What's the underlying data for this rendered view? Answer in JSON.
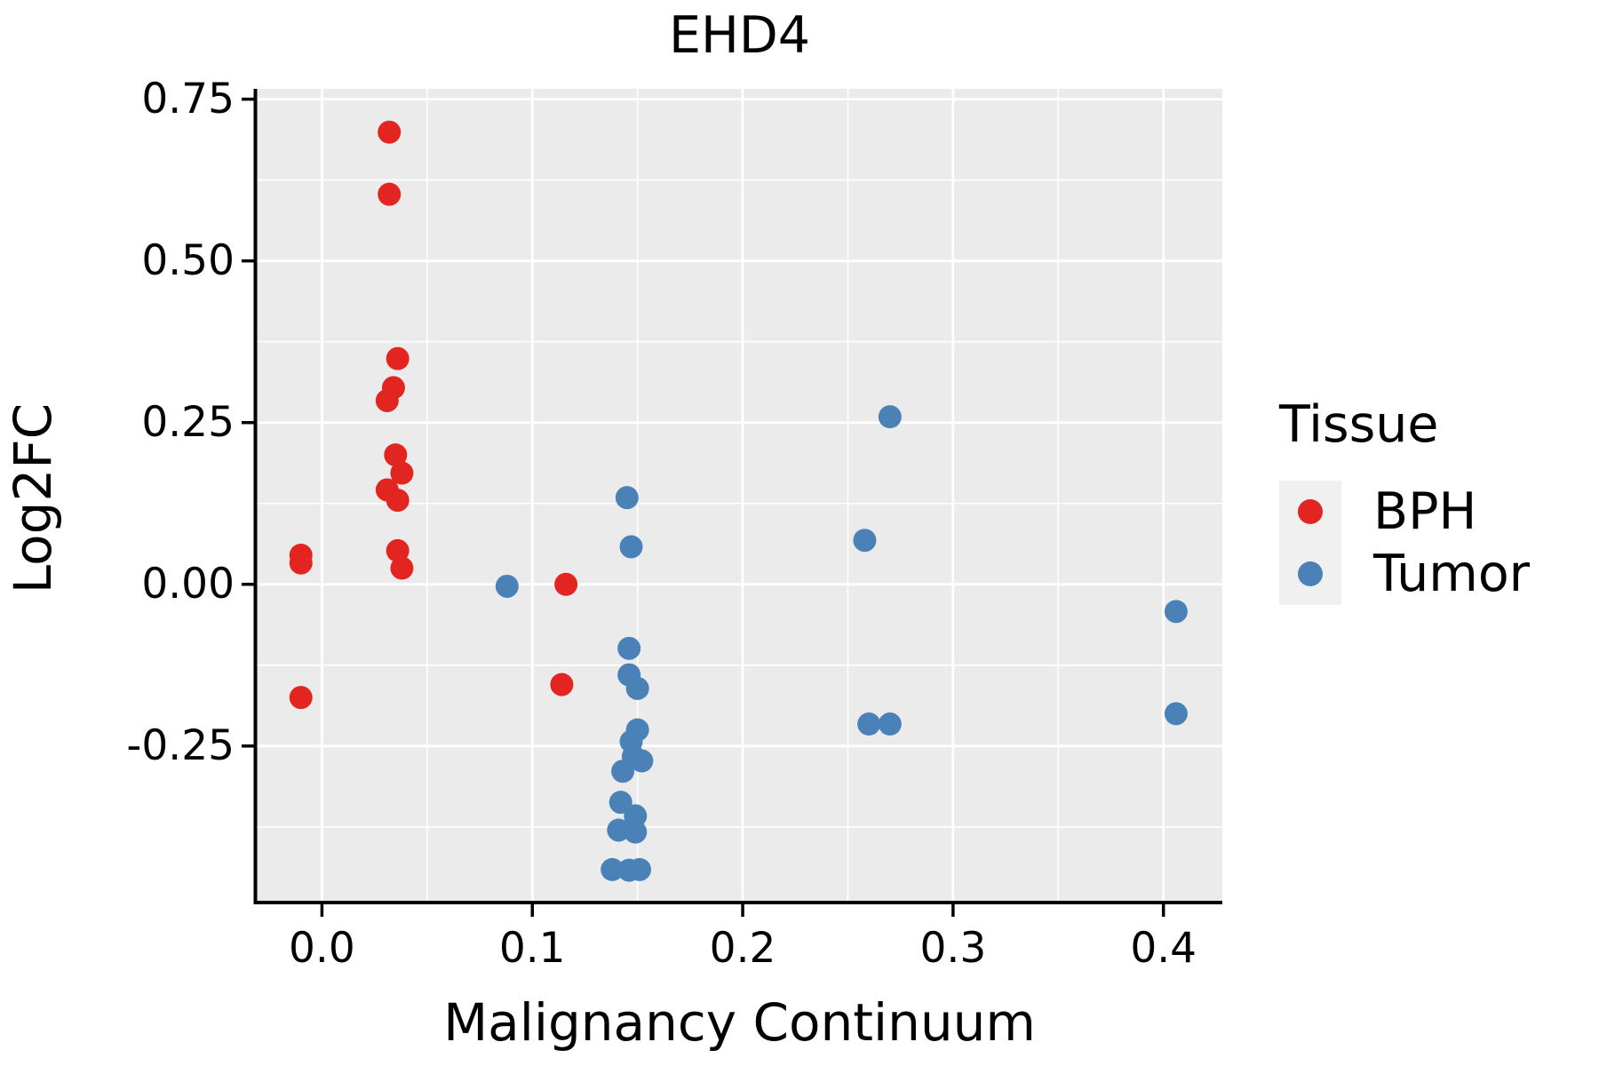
{
  "title": "EHD4",
  "legend": {
    "title": "Tissue",
    "items": [
      {
        "label": "BPH",
        "color": "#E32521"
      },
      {
        "label": "Tumor",
        "color": "#4A82B8"
      }
    ]
  },
  "colors": {
    "panel_background": "#EBEBEB",
    "gridline": "#FFFFFF",
    "axis": "#000000",
    "text": "#000000",
    "legend_key_background": "#F0F0F0"
  },
  "chart_data": {
    "type": "scatter",
    "title": "EHD4",
    "xlabel": "Malignancy Continuum",
    "ylabel": "Log2FC",
    "xlim": [
      -0.031,
      0.428
    ],
    "ylim": [
      -0.492,
      0.766
    ],
    "x_ticks": {
      "values": [
        0.0,
        0.1,
        0.2,
        0.3,
        0.4
      ],
      "labels": [
        "0.0",
        "0.1",
        "0.2",
        "0.3",
        "0.4"
      ]
    },
    "y_ticks": {
      "values": [
        0.75,
        0.5,
        0.25,
        0.0,
        -0.25
      ],
      "labels": [
        "0.75",
        "0.50",
        "0.25",
        "0.00",
        "-0.25"
      ]
    },
    "grid": "white major and minor gridlines on gray panel",
    "legend_position": "right",
    "point_radius_px": 13,
    "series": [
      {
        "name": "BPH",
        "color": "#E32521",
        "points": [
          [
            -0.01,
            0.045
          ],
          [
            -0.01,
            0.033
          ],
          [
            -0.01,
            -0.175
          ],
          [
            0.032,
            0.699
          ],
          [
            0.032,
            0.603
          ],
          [
            0.036,
            0.349
          ],
          [
            0.034,
            0.304
          ],
          [
            0.031,
            0.284
          ],
          [
            0.035,
            0.2
          ],
          [
            0.038,
            0.172
          ],
          [
            0.031,
            0.146
          ],
          [
            0.036,
            0.13
          ],
          [
            0.036,
            0.052
          ],
          [
            0.038,
            0.025
          ],
          [
            0.116,
            0.0
          ],
          [
            0.114,
            -0.155
          ]
        ]
      },
      {
        "name": "Tumor",
        "color": "#4A82B8",
        "points": [
          [
            0.088,
            -0.003
          ],
          [
            0.145,
            0.134
          ],
          [
            0.147,
            0.058
          ],
          [
            0.146,
            -0.099
          ],
          [
            0.146,
            -0.14
          ],
          [
            0.15,
            -0.161
          ],
          [
            0.15,
            -0.225
          ],
          [
            0.147,
            -0.243
          ],
          [
            0.148,
            -0.266
          ],
          [
            0.152,
            -0.273
          ],
          [
            0.143,
            -0.289
          ],
          [
            0.142,
            -0.337
          ],
          [
            0.149,
            -0.358
          ],
          [
            0.141,
            -0.38
          ],
          [
            0.149,
            -0.383
          ],
          [
            0.138,
            -0.441
          ],
          [
            0.146,
            -0.442
          ],
          [
            0.151,
            -0.441
          ],
          [
            0.27,
            0.259
          ],
          [
            0.258,
            0.068
          ],
          [
            0.26,
            -0.216
          ],
          [
            0.27,
            -0.216
          ],
          [
            0.406,
            -0.042
          ],
          [
            0.406,
            -0.2
          ]
        ]
      }
    ]
  }
}
